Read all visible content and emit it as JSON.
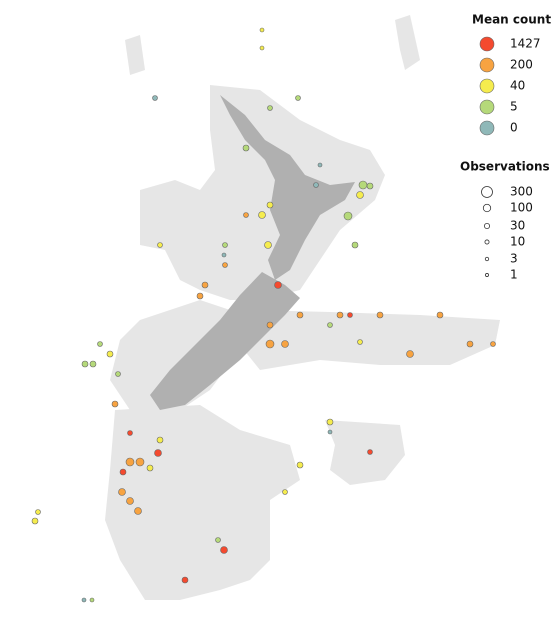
{
  "legend": {
    "mean_count": {
      "title": "Mean count",
      "items": [
        {
          "label": "1427",
          "color": "#f44a2f"
        },
        {
          "label": "200",
          "color": "#f7a341"
        },
        {
          "label": "40",
          "color": "#f5ec4e"
        },
        {
          "label": "5",
          "color": "#b5d97a"
        },
        {
          "label": "0",
          "color": "#8fb8b8"
        }
      ]
    },
    "observations": {
      "title": "Observations",
      "items": [
        "300",
        "100",
        "30",
        "10",
        "3",
        "1"
      ]
    }
  }
}
